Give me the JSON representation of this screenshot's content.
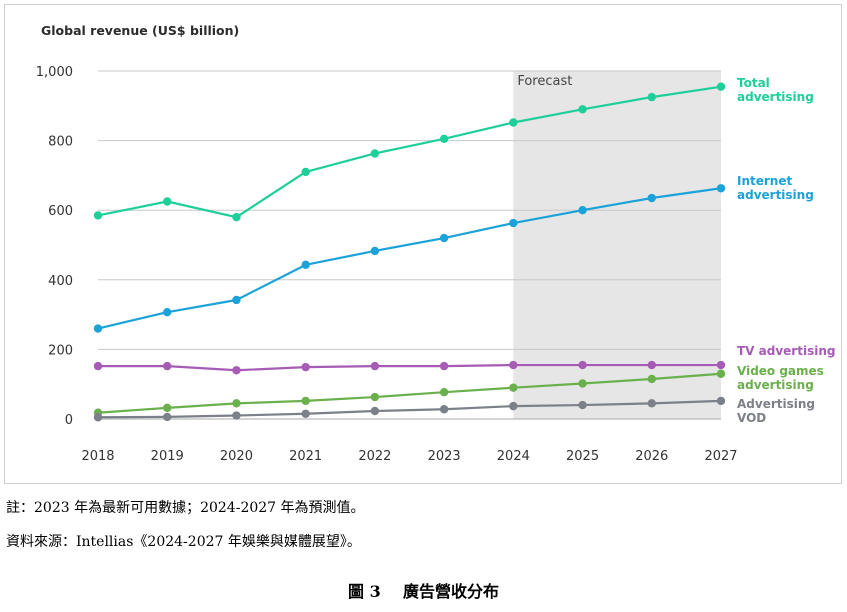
{
  "chart_data": {
    "type": "line",
    "title": "Global revenue (US$ billion)",
    "x": [
      "2018",
      "2019",
      "2020",
      "2021",
      "2022",
      "2023",
      "2024",
      "2025",
      "2026",
      "2027"
    ],
    "ylim": [
      0,
      1000
    ],
    "yticks": [
      "0",
      "200",
      "400",
      "600",
      "800",
      "1,000"
    ],
    "grid": true,
    "forecast_label": "Forecast",
    "forecast_range": [
      "2024",
      "2027"
    ],
    "series": [
      {
        "name_lines": [
          "Total",
          "advertising"
        ],
        "color": "#1ecf9a",
        "values": [
          585,
          625,
          580,
          710,
          763,
          805,
          852,
          890,
          925,
          955
        ]
      },
      {
        "name_lines": [
          "Internet",
          "advertising"
        ],
        "color": "#1ba3d9",
        "values": [
          260,
          307,
          342,
          443,
          483,
          520,
          563,
          600,
          635,
          663
        ]
      },
      {
        "name_lines": [
          "TV advertising"
        ],
        "color": "#a65bb4",
        "values": [
          152,
          152,
          140,
          149,
          152,
          152,
          155,
          155,
          155,
          155
        ]
      },
      {
        "name_lines": [
          "Video games",
          "advertising"
        ],
        "color": "#6ab04c",
        "values": [
          18,
          32,
          45,
          52,
          63,
          77,
          90,
          102,
          115,
          130
        ]
      },
      {
        "name_lines": [
          "Advertising",
          "VOD"
        ],
        "color": "#7b8089",
        "values": [
          5,
          6,
          10,
          15,
          23,
          28,
          37,
          40,
          45,
          52
        ]
      }
    ]
  },
  "notes": {
    "note": "註：2023 年為最新可用數據；2024-2027 年為預測值。",
    "source": "資料來源：Intellias《2024-2027  年娛樂與媒體展望》。",
    "figure_caption": "圖 3    廣告營收分布"
  }
}
